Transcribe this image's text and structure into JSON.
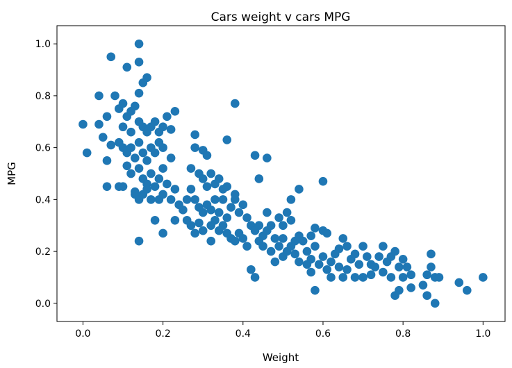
{
  "chart_data": {
    "type": "scatter",
    "title": "Cars weight v cars MPG",
    "xlabel": "Weight",
    "ylabel": "MPG",
    "xlim": [
      -0.065,
      1.055
    ],
    "ylim": [
      -0.07,
      1.07
    ],
    "xticks": [
      "0.0",
      "0.2",
      "0.4",
      "0.6",
      "0.8",
      "1.0"
    ],
    "yticks": [
      "0.0",
      "0.2",
      "0.4",
      "0.6",
      "0.8",
      "1.0"
    ],
    "grid": false,
    "color": "#1f77b4",
    "points": [
      [
        0.0,
        0.69
      ],
      [
        0.01,
        0.58
      ],
      [
        0.04,
        0.8
      ],
      [
        0.07,
        0.95
      ],
      [
        0.14,
        1.0
      ],
      [
        0.11,
        0.91
      ],
      [
        0.14,
        0.93
      ],
      [
        0.15,
        0.85
      ],
      [
        0.16,
        0.87
      ],
      [
        0.14,
        0.81
      ],
      [
        0.08,
        0.8
      ],
      [
        0.04,
        0.69
      ],
      [
        0.06,
        0.72
      ],
      [
        0.05,
        0.64
      ],
      [
        0.07,
        0.61
      ],
      [
        0.06,
        0.55
      ],
      [
        0.06,
        0.45
      ],
      [
        0.09,
        0.45
      ],
      [
        0.1,
        0.45
      ],
      [
        0.14,
        0.24
      ],
      [
        0.13,
        0.42
      ],
      [
        0.38,
        0.77
      ],
      [
        0.36,
        0.63
      ],
      [
        0.43,
        0.57
      ],
      [
        0.46,
        0.56
      ],
      [
        0.44,
        0.48
      ],
      [
        0.54,
        0.44
      ],
      [
        0.6,
        0.47
      ],
      [
        0.43,
        0.1
      ],
      [
        0.42,
        0.13
      ],
      [
        0.58,
        0.05
      ],
      [
        0.78,
        0.03
      ],
      [
        0.86,
        0.03
      ],
      [
        0.88,
        0.0
      ],
      [
        0.94,
        0.08
      ],
      [
        0.96,
        0.05
      ],
      [
        1.0,
        0.1
      ],
      [
        0.87,
        0.19
      ],
      [
        0.32,
        0.24
      ],
      [
        0.28,
        0.27
      ],
      [
        0.2,
        0.27
      ],
      [
        0.18,
        0.32
      ],
      [
        0.23,
        0.32
      ],
      [
        0.09,
        0.75
      ],
      [
        0.1,
        0.77
      ],
      [
        0.11,
        0.72
      ],
      [
        0.12,
        0.74
      ],
      [
        0.13,
        0.76
      ],
      [
        0.1,
        0.68
      ],
      [
        0.12,
        0.66
      ],
      [
        0.14,
        0.7
      ],
      [
        0.15,
        0.68
      ],
      [
        0.16,
        0.66
      ],
      [
        0.17,
        0.68
      ],
      [
        0.18,
        0.7
      ],
      [
        0.19,
        0.66
      ],
      [
        0.2,
        0.68
      ],
      [
        0.21,
        0.72
      ],
      [
        0.23,
        0.74
      ],
      [
        0.22,
        0.67
      ],
      [
        0.09,
        0.62
      ],
      [
        0.1,
        0.6
      ],
      [
        0.11,
        0.58
      ],
      [
        0.12,
        0.6
      ],
      [
        0.13,
        0.56
      ],
      [
        0.14,
        0.62
      ],
      [
        0.15,
        0.58
      ],
      [
        0.16,
        0.55
      ],
      [
        0.17,
        0.6
      ],
      [
        0.18,
        0.58
      ],
      [
        0.19,
        0.62
      ],
      [
        0.2,
        0.6
      ],
      [
        0.22,
        0.56
      ],
      [
        0.11,
        0.53
      ],
      [
        0.12,
        0.5
      ],
      [
        0.14,
        0.52
      ],
      [
        0.15,
        0.48
      ],
      [
        0.16,
        0.46
      ],
      [
        0.17,
        0.5
      ],
      [
        0.18,
        0.45
      ],
      [
        0.19,
        0.48
      ],
      [
        0.2,
        0.52
      ],
      [
        0.21,
        0.46
      ],
      [
        0.13,
        0.43
      ],
      [
        0.14,
        0.4
      ],
      [
        0.15,
        0.42
      ],
      [
        0.16,
        0.44
      ],
      [
        0.17,
        0.4
      ],
      [
        0.19,
        0.4
      ],
      [
        0.2,
        0.42
      ],
      [
        0.22,
        0.4
      ],
      [
        0.23,
        0.44
      ],
      [
        0.24,
        0.38
      ],
      [
        0.25,
        0.36
      ],
      [
        0.26,
        0.4
      ],
      [
        0.27,
        0.52
      ],
      [
        0.28,
        0.6
      ],
      [
        0.28,
        0.65
      ],
      [
        0.3,
        0.59
      ],
      [
        0.31,
        0.57
      ],
      [
        0.29,
        0.5
      ],
      [
        0.3,
        0.48
      ],
      [
        0.31,
        0.45
      ],
      [
        0.32,
        0.5
      ],
      [
        0.33,
        0.46
      ],
      [
        0.34,
        0.48
      ],
      [
        0.35,
        0.44
      ],
      [
        0.36,
        0.45
      ],
      [
        0.33,
        0.4
      ],
      [
        0.27,
        0.44
      ],
      [
        0.28,
        0.4
      ],
      [
        0.29,
        0.37
      ],
      [
        0.3,
        0.35
      ],
      [
        0.31,
        0.38
      ],
      [
        0.32,
        0.36
      ],
      [
        0.33,
        0.32
      ],
      [
        0.34,
        0.35
      ],
      [
        0.35,
        0.3
      ],
      [
        0.36,
        0.33
      ],
      [
        0.37,
        0.37
      ],
      [
        0.38,
        0.4
      ],
      [
        0.39,
        0.35
      ],
      [
        0.4,
        0.38
      ],
      [
        0.41,
        0.33
      ],
      [
        0.42,
        0.3
      ],
      [
        0.43,
        0.28
      ],
      [
        0.44,
        0.3
      ],
      [
        0.45,
        0.26
      ],
      [
        0.46,
        0.28
      ],
      [
        0.47,
        0.3
      ],
      [
        0.48,
        0.25
      ],
      [
        0.49,
        0.22
      ],
      [
        0.5,
        0.25
      ],
      [
        0.26,
        0.32
      ],
      [
        0.27,
        0.3
      ],
      [
        0.29,
        0.31
      ],
      [
        0.3,
        0.28
      ],
      [
        0.32,
        0.3
      ],
      [
        0.34,
        0.28
      ],
      [
        0.36,
        0.27
      ],
      [
        0.37,
        0.25
      ],
      [
        0.38,
        0.24
      ],
      [
        0.39,
        0.27
      ],
      [
        0.4,
        0.25
      ],
      [
        0.41,
        0.22
      ],
      [
        0.44,
        0.24
      ],
      [
        0.45,
        0.22
      ],
      [
        0.47,
        0.2
      ],
      [
        0.48,
        0.16
      ],
      [
        0.5,
        0.18
      ],
      [
        0.51,
        0.2
      ],
      [
        0.52,
        0.22
      ],
      [
        0.53,
        0.24
      ],
      [
        0.54,
        0.26
      ],
      [
        0.55,
        0.24
      ],
      [
        0.51,
        0.35
      ],
      [
        0.52,
        0.4
      ],
      [
        0.49,
        0.33
      ],
      [
        0.5,
        0.3
      ],
      [
        0.52,
        0.32
      ],
      [
        0.46,
        0.35
      ],
      [
        0.35,
        0.4
      ],
      [
        0.38,
        0.42
      ],
      [
        0.56,
        0.2
      ],
      [
        0.57,
        0.17
      ],
      [
        0.58,
        0.22
      ],
      [
        0.58,
        0.29
      ],
      [
        0.6,
        0.28
      ],
      [
        0.61,
        0.27
      ],
      [
        0.59,
        0.15
      ],
      [
        0.6,
        0.18
      ],
      [
        0.61,
        0.13
      ],
      [
        0.62,
        0.16
      ],
      [
        0.63,
        0.19
      ],
      [
        0.64,
        0.21
      ],
      [
        0.65,
        0.25
      ],
      [
        0.66,
        0.22
      ],
      [
        0.64,
        0.14
      ],
      [
        0.65,
        0.1
      ],
      [
        0.66,
        0.13
      ],
      [
        0.67,
        0.17
      ],
      [
        0.68,
        0.19
      ],
      [
        0.69,
        0.15
      ],
      [
        0.7,
        0.22
      ],
      [
        0.71,
        0.18
      ],
      [
        0.72,
        0.15
      ],
      [
        0.72,
        0.11
      ],
      [
        0.73,
        0.14
      ],
      [
        0.74,
        0.18
      ],
      [
        0.75,
        0.22
      ],
      [
        0.75,
        0.12
      ],
      [
        0.76,
        0.16
      ],
      [
        0.77,
        0.18
      ],
      [
        0.77,
        0.1
      ],
      [
        0.78,
        0.2
      ],
      [
        0.79,
        0.14
      ],
      [
        0.8,
        0.17
      ],
      [
        0.8,
        0.1
      ],
      [
        0.81,
        0.14
      ],
      [
        0.82,
        0.11
      ],
      [
        0.82,
        0.06
      ],
      [
        0.79,
        0.05
      ],
      [
        0.85,
        0.07
      ],
      [
        0.86,
        0.11
      ],
      [
        0.87,
        0.14
      ],
      [
        0.88,
        0.1
      ],
      [
        0.89,
        0.1
      ],
      [
        0.62,
        0.1
      ],
      [
        0.68,
        0.1
      ],
      [
        0.7,
        0.1
      ],
      [
        0.56,
        0.15
      ],
      [
        0.57,
        0.12
      ],
      [
        0.54,
        0.16
      ],
      [
        0.53,
        0.19
      ],
      [
        0.57,
        0.26
      ]
    ]
  }
}
